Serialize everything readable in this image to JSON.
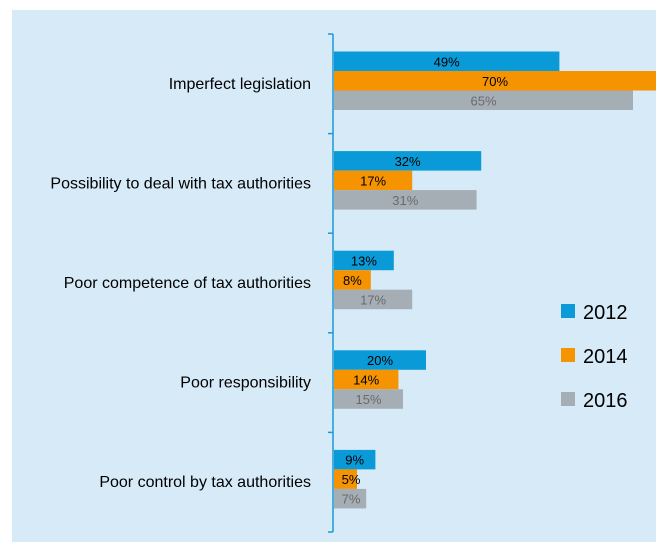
{
  "chart_data": {
    "type": "bar",
    "orientation": "horizontal",
    "categories": [
      "Imperfect legislation",
      "Possibility to deal with tax authorities",
      "Poor competence of tax authorities",
      "Poor responsibility",
      "Poor control by tax authorities"
    ],
    "series": [
      {
        "name": "2012",
        "color": "#0a9ad7",
        "values": [
          49,
          32,
          13,
          20,
          9
        ]
      },
      {
        "name": "2014",
        "color": "#f59300",
        "values": [
          70,
          17,
          8,
          14,
          5
        ]
      },
      {
        "name": "2016",
        "color": "#a5adb5",
        "values": [
          65,
          31,
          17,
          15,
          7
        ]
      }
    ],
    "value_labels": [
      [
        "49%",
        "32%",
        "13%",
        "20%",
        "9%"
      ],
      [
        "70%",
        "17%",
        "8%",
        "14%",
        "5%"
      ],
      [
        "65%",
        "31%",
        "17%",
        "15%",
        "7%"
      ]
    ],
    "label_colors": [
      "#000000",
      "#000000",
      "#6b6b6b"
    ],
    "xlim": [
      0,
      70
    ],
    "legend": "right",
    "background": "#d6eaf8",
    "axis_color": "#1a9ad6"
  }
}
